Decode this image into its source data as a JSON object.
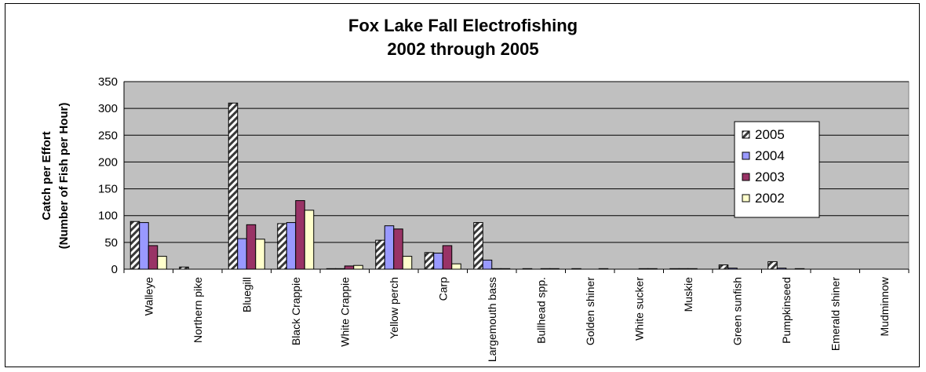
{
  "chart_data": {
    "type": "bar",
    "title": "Fox Lake Fall Electrofishing",
    "subtitle": "2002 through 2005",
    "ylabel": "Catch per Effort",
    "ylabel_line2": "(Number of Fish per Hour)",
    "xlabel": "",
    "ylim": [
      0,
      350
    ],
    "yticks": [
      0,
      50,
      100,
      150,
      200,
      250,
      300,
      350
    ],
    "grid": true,
    "legend_position": "top-right",
    "categories": [
      "Walleye",
      "Northern pike",
      "Bluegill",
      "Black Crappie",
      "White Crappie",
      "Yellow perch",
      "Carp",
      "Largemouth bass",
      "Bullhead spp.",
      "Golden shiner",
      "White sucker",
      "Muskie",
      "Green sunfish",
      "Pumpkinseed",
      "Emerald shiner",
      "Mudminnow"
    ],
    "series": [
      {
        "name": "2005",
        "color": "#3a3a3a",
        "pattern": "hatched",
        "values": [
          89,
          4,
          310,
          85,
          1,
          54,
          31,
          87,
          1,
          1,
          0,
          1,
          8,
          14,
          0,
          0
        ]
      },
      {
        "name": "2004",
        "color": "#9999ff",
        "pattern": "solid",
        "values": [
          87,
          0,
          57,
          87,
          1,
          81,
          30,
          17,
          0,
          0,
          0,
          1,
          2,
          2,
          0,
          0
        ]
      },
      {
        "name": "2003",
        "color": "#993366",
        "pattern": "solid",
        "values": [
          44,
          0,
          83,
          128,
          6,
          75,
          44,
          1,
          1,
          0,
          1,
          1,
          0,
          0,
          0,
          0
        ]
      },
      {
        "name": "2002",
        "color": "#ffffcc",
        "pattern": "solid",
        "values": [
          24,
          0,
          56,
          110,
          7,
          24,
          10,
          1,
          1,
          1,
          1,
          0,
          0,
          1,
          0,
          0
        ]
      }
    ],
    "colors": {
      "plot_background": "#c0c0c0",
      "gridline": "#000000"
    }
  }
}
